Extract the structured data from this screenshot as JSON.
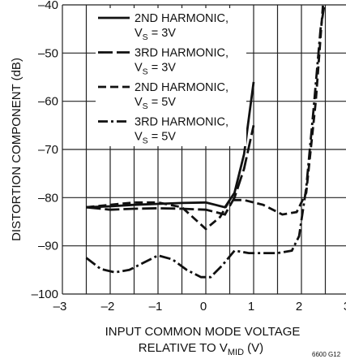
{
  "chart_data": {
    "type": "line",
    "xlabel": "INPUT COMMON MODE VOLTAGE",
    "xlabel_line2": "RELATIVE TO V",
    "xlabel_sub": "MID",
    "xlabel_unit": " (V)",
    "ylabel": "DISTORTION COMPONENT (dB)",
    "xlim": [
      -3,
      3
    ],
    "ylim": [
      -100,
      -40
    ],
    "x_ticks": [
      -3,
      -2,
      -1,
      0,
      1,
      2,
      3
    ],
    "x_tick_labels": [
      "–3",
      "–2",
      "–1",
      "0",
      "1",
      "2",
      "3"
    ],
    "y_ticks": [
      -100,
      -90,
      -80,
      -70,
      -60,
      -50,
      -40
    ],
    "y_tick_labels": [
      "–100",
      "–90",
      "–80",
      "–70",
      "–60",
      "–50",
      "–40"
    ],
    "grid": true,
    "legend_position": "top-left",
    "figure_code": "6600 G12",
    "series": [
      {
        "name": "2ND HARMONIC,",
        "name_line2": "V",
        "name_sub": "S",
        "name_suffix": " = 3V",
        "style": "solid",
        "points": [
          [
            -2.5,
            -82
          ],
          [
            -2,
            -81.8
          ],
          [
            -1.5,
            -81.5
          ],
          [
            -1,
            -81.3
          ],
          [
            -0.5,
            -81.1
          ],
          [
            0,
            -81
          ],
          [
            0.2,
            -81.5
          ],
          [
            0.4,
            -82
          ],
          [
            0.6,
            -79
          ],
          [
            0.8,
            -71
          ],
          [
            1,
            -56
          ]
        ]
      },
      {
        "name": "3RD HARMONIC,",
        "name_line2": "V",
        "name_sub": "S",
        "name_suffix": " = 3V",
        "style": "longdash",
        "points": [
          [
            -2.5,
            -82
          ],
          [
            -2,
            -82.5
          ],
          [
            -1.5,
            -82.3
          ],
          [
            -1,
            -82.2
          ],
          [
            -0.5,
            -82.3
          ],
          [
            0,
            -82.5
          ],
          [
            0.2,
            -83
          ],
          [
            0.4,
            -83.5
          ],
          [
            0.6,
            -80
          ],
          [
            0.8,
            -74
          ],
          [
            1,
            -65
          ]
        ]
      },
      {
        "name": "2ND HARMONIC,",
        "name_line2": "V",
        "name_sub": "S",
        "name_suffix": " = 5V",
        "style": "dashed",
        "points": [
          [
            -2.5,
            -82
          ],
          [
            -2,
            -81.5
          ],
          [
            -1.5,
            -81
          ],
          [
            -1,
            -81
          ],
          [
            -0.5,
            -82
          ],
          [
            0,
            -86.5
          ],
          [
            0.3,
            -84
          ],
          [
            0.5,
            -80.5
          ],
          [
            0.8,
            -80.5
          ],
          [
            1.2,
            -81.5
          ],
          [
            1.6,
            -83.5
          ],
          [
            1.9,
            -83
          ],
          [
            2.1,
            -79
          ],
          [
            2.3,
            -60
          ],
          [
            2.45,
            -40
          ]
        ]
      },
      {
        "name": "3RD HARMONIC,",
        "name_line2": "V",
        "name_sub": "S",
        "name_suffix": " = 5V",
        "style": "dashdot",
        "points": [
          [
            -2.5,
            -92.5
          ],
          [
            -2.2,
            -94.8
          ],
          [
            -1.9,
            -95.5
          ],
          [
            -1.6,
            -95
          ],
          [
            -1.3,
            -93.5
          ],
          [
            -1,
            -92
          ],
          [
            -0.7,
            -92.8
          ],
          [
            -0.4,
            -95
          ],
          [
            -0.1,
            -96.5
          ],
          [
            0.1,
            -96.5
          ],
          [
            0.35,
            -94
          ],
          [
            0.6,
            -91
          ],
          [
            0.9,
            -91.5
          ],
          [
            1.2,
            -91.5
          ],
          [
            1.5,
            -91.5
          ],
          [
            1.8,
            -91
          ],
          [
            1.95,
            -88
          ],
          [
            2.1,
            -78
          ],
          [
            2.25,
            -62
          ],
          [
            2.4,
            -45
          ],
          [
            2.48,
            -40
          ]
        ]
      }
    ]
  }
}
